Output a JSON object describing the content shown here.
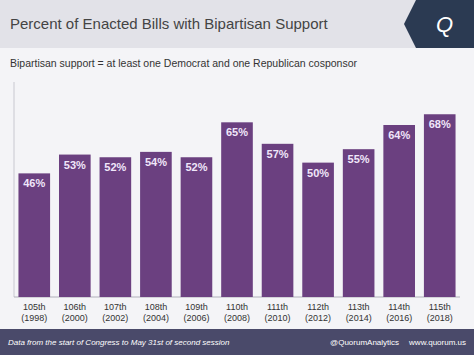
{
  "chart_data": {
    "type": "bar",
    "title": "Percent of Enacted Bills with Bipartisan Support",
    "subtitle": "Bipartisan support = at least one Democrat and one Republican cosponsor",
    "categories": [
      "105th\n(1998)",
      "106th\n(2000)",
      "107th\n(2002)",
      "108th\n(2004)",
      "109th\n(2006)",
      "110th\n(2008)",
      "111th\n(2010)",
      "112th\n(2012)",
      "113th\n(2014)",
      "114th\n(2016)",
      "115th\n(2018)"
    ],
    "values": [
      46,
      53,
      52,
      54,
      52,
      65,
      57,
      50,
      55,
      64,
      68
    ],
    "value_labels": [
      "46%",
      "53%",
      "52%",
      "54%",
      "52%",
      "65%",
      "57%",
      "50%",
      "55%",
      "64%",
      "68%"
    ],
    "color": "#6B4080",
    "ylim": [
      0,
      80
    ],
    "grid": false,
    "data_labels": true,
    "tick_labels": "x",
    "annotations": [
      "Q",
      "Data from the start of Congress to May 31st of second session",
      "@QuorumAnalytics",
      "www.quorum.us"
    ]
  }
}
